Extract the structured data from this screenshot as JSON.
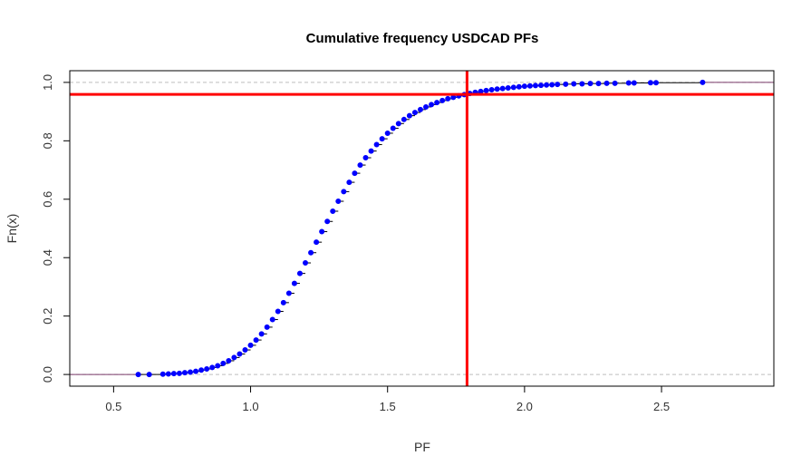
{
  "chart_data": {
    "type": "scatter",
    "title": "Cumulative frequency USDCAD PFs",
    "xlabel": "PF",
    "ylabel": "Fn(x)",
    "xlim": [
      0.34,
      2.91
    ],
    "ylim": [
      -0.04,
      1.04
    ],
    "xticks": [
      0.5,
      1.0,
      1.5,
      2.0,
      2.5
    ],
    "xtick_labels": [
      "0.5",
      "1.0",
      "1.5",
      "2.0",
      "2.5"
    ],
    "yticks": [
      0.0,
      0.2,
      0.4,
      0.6,
      0.8,
      1.0
    ],
    "ytick_labels": [
      "0.0",
      "0.2",
      "0.4",
      "0.6",
      "0.8",
      "1.0"
    ],
    "reference_hlines": [
      0.0,
      1.0
    ],
    "vline_x": 1.79,
    "hline_y": 0.959,
    "series": [
      {
        "color": "#0000ff",
        "x": [
          0.59,
          0.63,
          0.68,
          0.7,
          0.72,
          0.74,
          0.76,
          0.78,
          0.8,
          0.82,
          0.84,
          0.86,
          0.88,
          0.9,
          0.92,
          0.94,
          0.96,
          0.98,
          1.0,
          1.02,
          1.04,
          1.06,
          1.08,
          1.1,
          1.12,
          1.14,
          1.16,
          1.18,
          1.2,
          1.22,
          1.24,
          1.26,
          1.28,
          1.3,
          1.32,
          1.34,
          1.36,
          1.38,
          1.4,
          1.42,
          1.44,
          1.46,
          1.48,
          1.5,
          1.52,
          1.54,
          1.56,
          1.58,
          1.6,
          1.62,
          1.64,
          1.66,
          1.68,
          1.7,
          1.72,
          1.74,
          1.76,
          1.78,
          1.8,
          1.82,
          1.84,
          1.86,
          1.88,
          1.9,
          1.92,
          1.94,
          1.96,
          1.98,
          2.0,
          2.02,
          2.04,
          2.06,
          2.08,
          2.1,
          2.12,
          2.15,
          2.18,
          2.21,
          2.24,
          2.27,
          2.3,
          2.33,
          2.38,
          2.4,
          2.46,
          2.48,
          2.65
        ],
        "y": [
          0.0,
          0.0,
          0.001,
          0.002,
          0.003,
          0.004,
          0.006,
          0.008,
          0.011,
          0.015,
          0.019,
          0.024,
          0.03,
          0.038,
          0.047,
          0.058,
          0.07,
          0.084,
          0.1,
          0.118,
          0.139,
          0.162,
          0.188,
          0.216,
          0.246,
          0.278,
          0.312,
          0.346,
          0.382,
          0.417,
          0.453,
          0.489,
          0.524,
          0.559,
          0.593,
          0.626,
          0.658,
          0.689,
          0.717,
          0.742,
          0.765,
          0.787,
          0.807,
          0.826,
          0.843,
          0.859,
          0.873,
          0.886,
          0.897,
          0.907,
          0.916,
          0.924,
          0.931,
          0.938,
          0.944,
          0.949,
          0.954,
          0.958,
          0.962,
          0.966,
          0.969,
          0.972,
          0.975,
          0.977,
          0.979,
          0.981,
          0.983,
          0.985,
          0.987,
          0.988,
          0.989,
          0.99,
          0.991,
          0.992,
          0.993,
          0.994,
          0.995,
          0.995,
          0.996,
          0.996,
          0.997,
          0.997,
          0.998,
          0.998,
          0.999,
          0.999,
          1.0
        ]
      }
    ]
  }
}
